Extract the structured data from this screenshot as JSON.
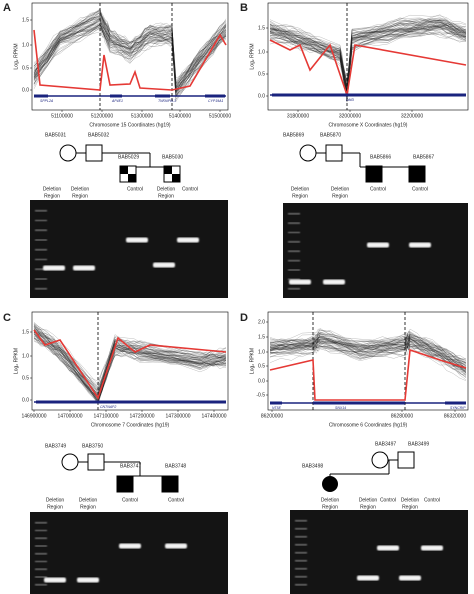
{
  "panels": [
    {
      "label": "A",
      "y_axis_label": "Log₂ RPKM",
      "y_ticks": [
        "1.5",
        "1.0",
        "0.5",
        "0.0"
      ],
      "x_ticks": [
        "51100000",
        "51200000",
        "51300000",
        "51400000",
        "51500000"
      ],
      "x_axis_label": "Chromosome 15 Coordinates (hg19)",
      "genes": [
        "SPPL2A",
        "AP4E1",
        "TNFAIP8L3",
        "CYP19A1"
      ],
      "pedigree": [
        "BAB5031",
        "BAB5032",
        "BAB5029",
        "BAB5030"
      ],
      "lanes": [
        [
          "Deletion",
          "Region"
        ],
        [
          "Deletion",
          "Region"
        ],
        [
          "Control"
        ],
        [
          "Deletion",
          "Region"
        ],
        [
          "Control"
        ]
      ]
    },
    {
      "label": "B",
      "y_axis_label": "Log₂ RPKM",
      "y_ticks": [
        "1.5",
        "1.0",
        "0.5",
        "0.0"
      ],
      "x_ticks": [
        "31800000",
        "32000000",
        "32200000"
      ],
      "x_axis_label": "Chromosome X Coordinates (hg19)",
      "genes": [
        "DMD"
      ],
      "pedigree": [
        "BAB5869",
        "BAB5870",
        "BAB5866",
        "BAB5867"
      ],
      "lanes": [
        [
          "Deletion",
          "Region"
        ],
        [
          "Deletion",
          "Region"
        ],
        [
          "Control"
        ],
        [
          "Control"
        ]
      ]
    },
    {
      "label": "C",
      "y_axis_label": "Log₂ RPKM",
      "y_ticks": [
        "1.5",
        "1.0",
        "0.5",
        "0.0"
      ],
      "x_ticks": [
        "146900000",
        "147000000",
        "147100000",
        "147200000",
        "147300000",
        "147400000"
      ],
      "x_axis_label": "Chromosome 7 Coordinates (hg19)",
      "genes": [
        "CNTNAP2"
      ],
      "pedigree": [
        "BAB3749",
        "BAB3750",
        "BAB3747",
        "BAB3748"
      ],
      "lanes": [
        [
          "Deletion",
          "Region"
        ],
        [
          "Deletion",
          "Region"
        ],
        [
          "Control"
        ],
        [
          "Control"
        ]
      ]
    },
    {
      "label": "D",
      "y_axis_label": "Log₂ RPKM",
      "y_ticks": [
        "2.0",
        "1.5",
        "1.0",
        "0.5",
        "0.0",
        "-0.5"
      ],
      "x_ticks": [
        "86200000",
        "86280000",
        "86320000"
      ],
      "x_axis_label": "Chromosome 6 Coordinates (hg19)",
      "genes": [
        "NT5E",
        "SNX14",
        "SYNCRIP"
      ],
      "pedigree": [
        "BAB3497",
        "BAB3499",
        "BAB3498"
      ],
      "lanes": [
        [
          "Deletion",
          "Region"
        ],
        [
          "Deletion",
          "Region"
        ],
        [
          "Control"
        ],
        [
          "Deletion",
          "Region"
        ],
        [
          "Control"
        ]
      ]
    }
  ]
}
